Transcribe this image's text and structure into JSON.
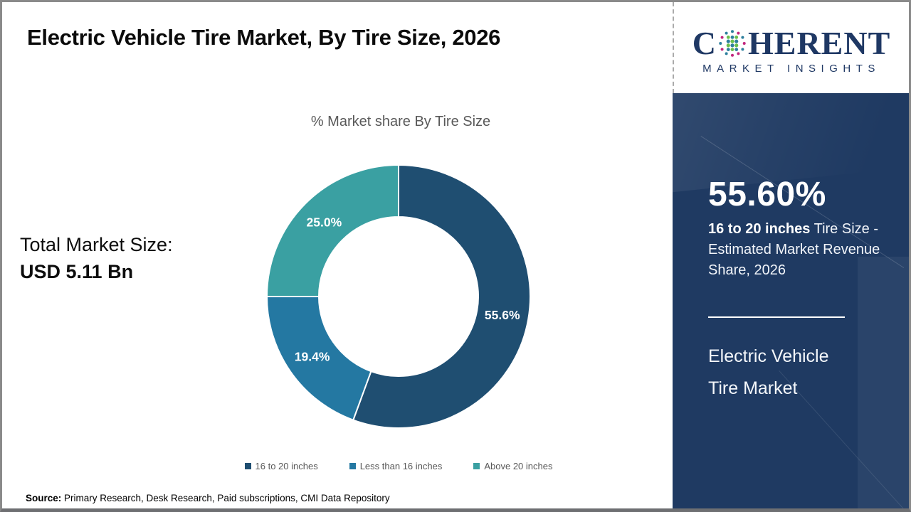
{
  "header": {
    "title": "Electric Vehicle Tire Market, By Tire Size, 2026"
  },
  "logo": {
    "part1": "C",
    "part2": "HERENT",
    "subtitle": "MARKET INSIGHTS",
    "brand_color": "#1f3864"
  },
  "main": {
    "total_label": "Total Market Size:",
    "total_value": "USD 5.11 Bn"
  },
  "chart_data": {
    "type": "pie",
    "subtype": "donut",
    "title": "% Market share By Tire Size",
    "start_angle_deg": -90,
    "direction": "clockwise",
    "legend_position": "bottom",
    "series": [
      {
        "name": "16 to 20 inches",
        "value": 55.6,
        "label": "55.6%",
        "color": "#1f4e71"
      },
      {
        "name": "Less than 16 inches",
        "value": 19.4,
        "label": "19.4%",
        "color": "#2478a2"
      },
      {
        "name": "Above 20 inches",
        "value": 25.0,
        "label": "25.0%",
        "color": "#3aa0a2"
      }
    ]
  },
  "sidebar": {
    "stat_value": "55.60%",
    "stat_bold": "16 to 20 inches",
    "stat_rest": " Tire Size - Estimated Market Revenue Share, 2026",
    "product_line1": "Electric Vehicle",
    "product_line2": "Tire Market",
    "background_color": "#1f3a62"
  },
  "footer": {
    "source_label": "Source:",
    "source_text": " Primary Research, Desk Research, Paid subscriptions, CMI Data Repository"
  }
}
